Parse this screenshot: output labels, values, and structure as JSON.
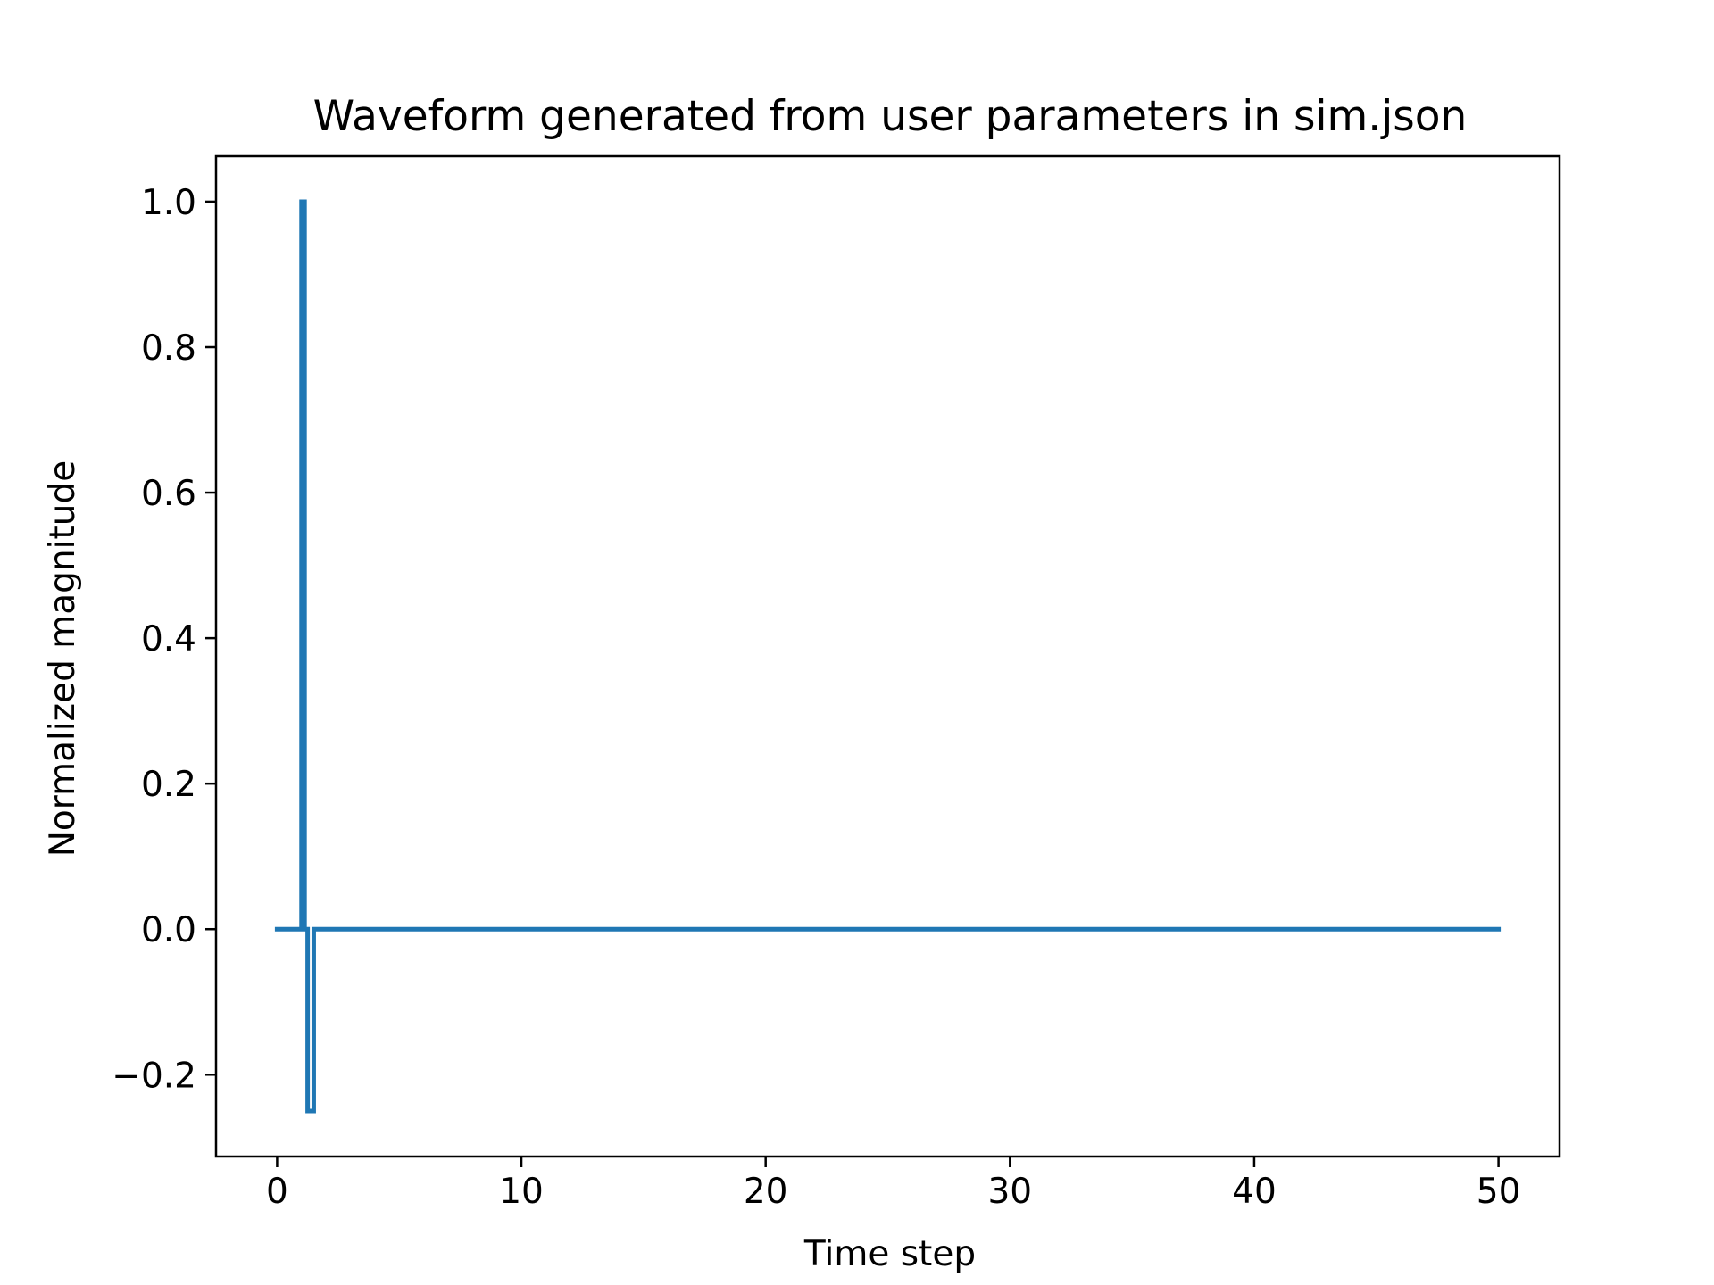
{
  "chart_data": {
    "type": "line",
    "title": "Waveform generated from user parameters in sim.json",
    "xlabel": "Time step",
    "ylabel": "Normalized magnitude",
    "xlim": [
      -2.5,
      52.5
    ],
    "ylim": [
      -0.3125,
      1.0625
    ],
    "xticks": [
      0,
      10,
      20,
      30,
      40,
      50
    ],
    "xtick_labels": [
      "0",
      "10",
      "20",
      "30",
      "40",
      "50"
    ],
    "yticks": [
      -0.2,
      0.0,
      0.2,
      0.4,
      0.6,
      0.8,
      1.0
    ],
    "ytick_labels": [
      "−0.2",
      "0.0",
      "0.2",
      "0.4",
      "0.6",
      "0.8",
      "1.0"
    ],
    "grid": false,
    "legend": "none",
    "series": [
      {
        "color": "#1f77b4",
        "x": [
          0,
          1,
          1,
          1.125,
          1.125,
          1.25,
          1.25,
          1.5,
          1.5,
          1.625,
          1.625,
          50
        ],
        "y": [
          0,
          0,
          1,
          1,
          0,
          0,
          -0.25,
          -0.25,
          0,
          0,
          0,
          0
        ]
      }
    ]
  }
}
